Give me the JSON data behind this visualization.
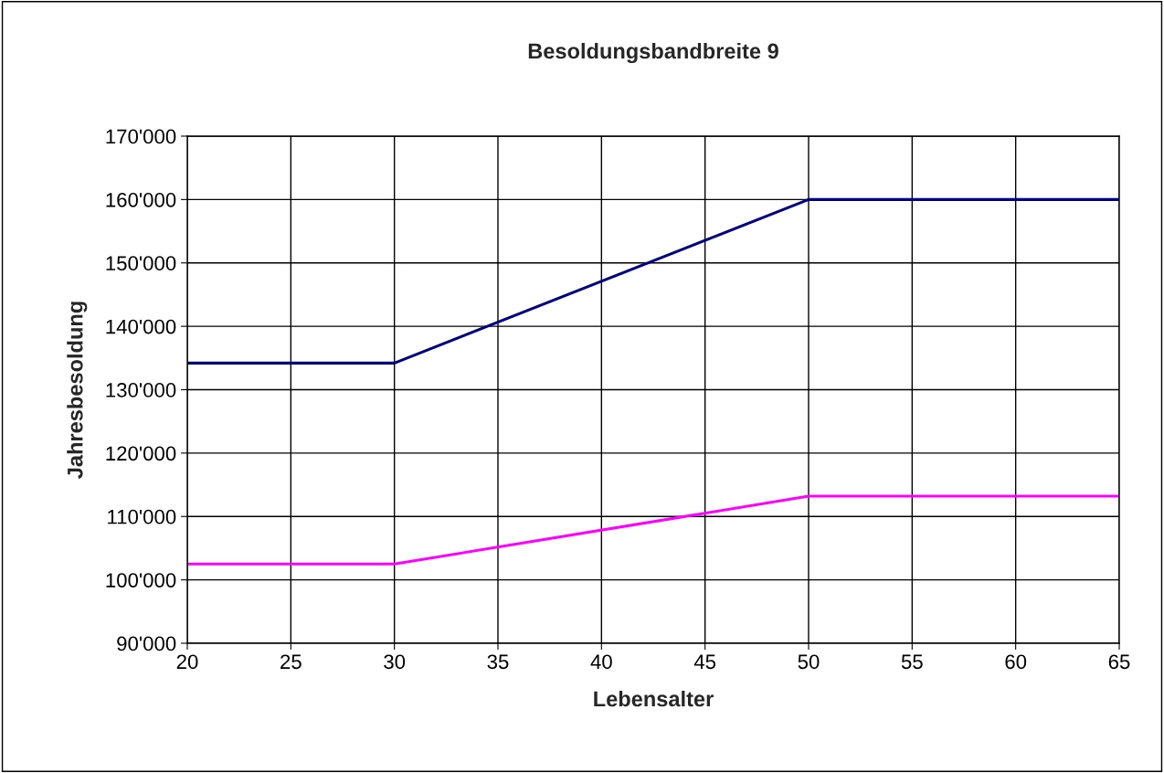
{
  "chart_data": {
    "type": "line",
    "title": "Besoldungsbandbreite 9",
    "xlabel": "Lebensalter",
    "ylabel": "Jahresbesoldung",
    "x": [
      20,
      30,
      50,
      65
    ],
    "series": [
      {
        "color": "#000080",
        "values": [
          134200,
          134200,
          160000,
          160000
        ]
      },
      {
        "color": "#ff00ff",
        "values": [
          102500,
          102500,
          113200,
          113200
        ]
      }
    ],
    "xlim": [
      20,
      65
    ],
    "xticks": [
      20,
      25,
      30,
      35,
      40,
      45,
      50,
      55,
      60,
      65
    ],
    "ylim": [
      90000,
      170000
    ],
    "yticks": [
      {
        "value": 90000,
        "label": "90'000"
      },
      {
        "value": 100000,
        "label": "100'000"
      },
      {
        "value": 110000,
        "label": "110'000"
      },
      {
        "value": 120000,
        "label": "120'000"
      },
      {
        "value": 130000,
        "label": "130'000"
      },
      {
        "value": 140000,
        "label": "140'000"
      },
      {
        "value": 150000,
        "label": "150'000"
      },
      {
        "value": 160000,
        "label": "160'000"
      },
      {
        "value": 170000,
        "label": "170'000"
      }
    ],
    "grid": true,
    "marker": "none",
    "line_style": "solid"
  }
}
